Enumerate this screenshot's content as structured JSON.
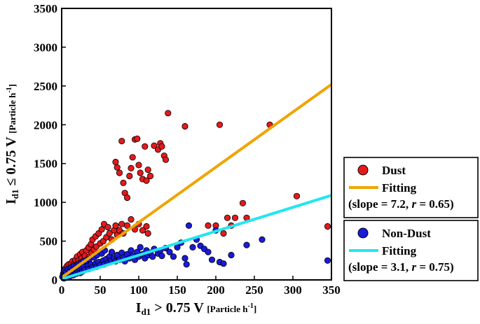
{
  "chart_data": {
    "type": "scatter",
    "xlim": [
      0,
      350
    ],
    "ylim": [
      0,
      3500
    ],
    "xticks": [
      "0",
      "50",
      "100",
      "150",
      "200",
      "250",
      "300",
      "350"
    ],
    "yticks": [
      "0",
      "500",
      "1000",
      "1500",
      "2000",
      "2500",
      "3000",
      "3500"
    ],
    "xlabel": {
      "main": "I",
      "sub": "d1",
      "rest": " > 0.75 V ",
      "unit": "[Particle h",
      "sup": "-1",
      "close": "]"
    },
    "ylabel": {
      "main": "I",
      "sub": "d1",
      "rest": " ≤ 0.75 V ",
      "unit": "[Particle h",
      "sup": "-1",
      "close": "]"
    },
    "grid": false,
    "legend_position": "right",
    "series": [
      {
        "name": "Dust",
        "marker": "circle",
        "color": "#e31a1c",
        "points": [
          [
            2,
            60
          ],
          [
            3,
            120
          ],
          [
            4,
            90
          ],
          [
            5,
            150
          ],
          [
            6,
            40
          ],
          [
            7,
            180
          ],
          [
            8,
            110
          ],
          [
            9,
            200
          ],
          [
            10,
            130
          ],
          [
            11,
            90
          ],
          [
            12,
            210
          ],
          [
            13,
            160
          ],
          [
            14,
            240
          ],
          [
            15,
            120
          ],
          [
            16,
            180
          ],
          [
            17,
            220
          ],
          [
            18,
            260
          ],
          [
            19,
            150
          ],
          [
            20,
            300
          ],
          [
            21,
            200
          ],
          [
            22,
            250
          ],
          [
            23,
            170
          ],
          [
            24,
            330
          ],
          [
            25,
            220
          ],
          [
            26,
            280
          ],
          [
            27,
            360
          ],
          [
            28,
            240
          ],
          [
            30,
            310
          ],
          [
            32,
            380
          ],
          [
            33,
            260
          ],
          [
            35,
            420
          ],
          [
            36,
            300
          ],
          [
            38,
            460
          ],
          [
            39,
            350
          ],
          [
            40,
            520
          ],
          [
            42,
            390
          ],
          [
            44,
            560
          ],
          [
            45,
            430
          ],
          [
            48,
            600
          ],
          [
            50,
            470
          ],
          [
            52,
            650
          ],
          [
            54,
            500
          ],
          [
            55,
            720
          ],
          [
            58,
            550
          ],
          [
            60,
            680
          ],
          [
            62,
            600
          ],
          [
            65,
            520
          ],
          [
            68,
            640
          ],
          [
            70,
            700
          ],
          [
            72,
            580
          ],
          [
            75,
            640
          ],
          [
            78,
            720
          ],
          [
            80,
            600
          ],
          [
            85,
            700
          ],
          [
            90,
            780
          ],
          [
            95,
            650
          ],
          [
            100,
            720
          ],
          [
            105,
            640
          ],
          [
            110,
            690
          ],
          [
            112,
            600
          ],
          [
            70,
            1520
          ],
          [
            72,
            1450
          ],
          [
            75,
            1380
          ],
          [
            78,
            1790
          ],
          [
            80,
            1250
          ],
          [
            82,
            1120
          ],
          [
            85,
            1060
          ],
          [
            88,
            1340
          ],
          [
            90,
            1440
          ],
          [
            92,
            1580
          ],
          [
            95,
            1810
          ],
          [
            98,
            1820
          ],
          [
            100,
            1480
          ],
          [
            102,
            1380
          ],
          [
            105,
            1300
          ],
          [
            108,
            1720
          ],
          [
            110,
            1280
          ],
          [
            112,
            1420
          ],
          [
            115,
            1340
          ],
          [
            120,
            1730
          ],
          [
            125,
            1680
          ],
          [
            128,
            1760
          ],
          [
            130,
            1720
          ],
          [
            133,
            1600
          ],
          [
            135,
            1550
          ],
          [
            138,
            2150
          ],
          [
            160,
            1980
          ],
          [
            190,
            700
          ],
          [
            200,
            700
          ],
          [
            205,
            2000
          ],
          [
            210,
            600
          ],
          [
            215,
            800
          ],
          [
            220,
            700
          ],
          [
            225,
            800
          ],
          [
            235,
            990
          ],
          [
            240,
            800
          ],
          [
            270,
            2000
          ],
          [
            305,
            1080
          ],
          [
            345,
            690
          ]
        ]
      },
      {
        "name": "Non-Dust",
        "marker": "circle",
        "color": "#1a1adc",
        "points": [
          [
            1,
            40
          ],
          [
            2,
            80
          ],
          [
            3,
            20
          ],
          [
            4,
            120
          ],
          [
            5,
            60
          ],
          [
            6,
            100
          ],
          [
            7,
            30
          ],
          [
            8,
            140
          ],
          [
            9,
            70
          ],
          [
            10,
            110
          ],
          [
            11,
            50
          ],
          [
            12,
            160
          ],
          [
            13,
            90
          ],
          [
            14,
            130
          ],
          [
            15,
            60
          ],
          [
            16,
            180
          ],
          [
            17,
            110
          ],
          [
            18,
            150
          ],
          [
            19,
            80
          ],
          [
            20,
            190
          ],
          [
            21,
            120
          ],
          [
            22,
            210
          ],
          [
            23,
            140
          ],
          [
            24,
            90
          ],
          [
            25,
            220
          ],
          [
            26,
            160
          ],
          [
            27,
            110
          ],
          [
            28,
            240
          ],
          [
            29,
            170
          ],
          [
            30,
            130
          ],
          [
            32,
            250
          ],
          [
            34,
            180
          ],
          [
            35,
            140
          ],
          [
            36,
            270
          ],
          [
            38,
            200
          ],
          [
            40,
            160
          ],
          [
            42,
            290
          ],
          [
            44,
            210
          ],
          [
            45,
            170
          ],
          [
            46,
            320
          ],
          [
            48,
            230
          ],
          [
            50,
            190
          ],
          [
            52,
            340
          ],
          [
            54,
            250
          ],
          [
            55,
            200
          ],
          [
            56,
            380
          ],
          [
            58,
            270
          ],
          [
            60,
            220
          ],
          [
            62,
            300
          ],
          [
            64,
            250
          ],
          [
            65,
            360
          ],
          [
            68,
            280
          ],
          [
            70,
            240
          ],
          [
            72,
            320
          ],
          [
            75,
            260
          ],
          [
            78,
            350
          ],
          [
            80,
            290
          ],
          [
            82,
            240
          ],
          [
            85,
            330
          ],
          [
            88,
            280
          ],
          [
            90,
            380
          ],
          [
            92,
            310
          ],
          [
            95,
            260
          ],
          [
            98,
            360
          ],
          [
            100,
            300
          ],
          [
            102,
            420
          ],
          [
            105,
            330
          ],
          [
            108,
            280
          ],
          [
            110,
            380
          ],
          [
            112,
            320
          ],
          [
            115,
            350
          ],
          [
            118,
            300
          ],
          [
            120,
            400
          ],
          [
            125,
            340
          ],
          [
            128,
            380
          ],
          [
            130,
            310
          ],
          [
            135,
            410
          ],
          [
            140,
            360
          ],
          [
            145,
            300
          ],
          [
            150,
            420
          ],
          [
            155,
            480
          ],
          [
            160,
            280
          ],
          [
            162,
            200
          ],
          [
            165,
            700
          ],
          [
            170,
            420
          ],
          [
            175,
            520
          ],
          [
            180,
            440
          ],
          [
            185,
            400
          ],
          [
            190,
            360
          ],
          [
            195,
            260
          ],
          [
            200,
            640
          ],
          [
            205,
            230
          ],
          [
            210,
            210
          ],
          [
            220,
            320
          ],
          [
            240,
            450
          ],
          [
            260,
            520
          ],
          [
            345,
            250
          ]
        ]
      }
    ],
    "fits": [
      {
        "name": "Fitting",
        "color": "#f0a400",
        "x": [
          0,
          350
        ],
        "y": [
          30,
          2520
        ]
      },
      {
        "name": "Fitting",
        "color": "#22e6f0",
        "x": [
          0,
          350
        ],
        "y": [
          10,
          1090
        ]
      }
    ],
    "legend": {
      "dust_label": "Dust",
      "dust_fit_label": "Fitting",
      "dust_stats": {
        "pre": "(slope = 7.2, ",
        "r": "r",
        "post": " = 0.65)"
      },
      "nondust_label": "Non-Dust",
      "nondust_fit_label": "Fitting",
      "nondust_stats": {
        "pre": "(slope = 3.1, ",
        "r": "r",
        "post": " = 0.75)"
      }
    }
  }
}
